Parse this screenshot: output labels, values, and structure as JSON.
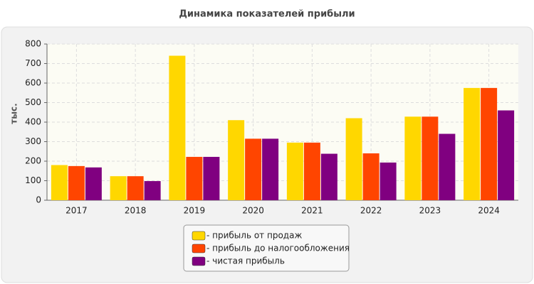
{
  "chart_data": {
    "type": "bar",
    "title": "Динамика показателей прибыли",
    "y_label": "тыс.",
    "categories": [
      "2017",
      "2018",
      "2019",
      "2020",
      "2021",
      "2022",
      "2023",
      "2024"
    ],
    "series": [
      {
        "name": "- прибыль от продаж",
        "color": "#ffd700",
        "values": [
          180,
          123,
          740,
          410,
          295,
          420,
          428,
          575
        ]
      },
      {
        "name": "- прибыль до налогообложения",
        "color": "#ff4500",
        "values": [
          175,
          123,
          222,
          315,
          295,
          240,
          428,
          575
        ]
      },
      {
        "name": "- чистая прибыль",
        "color": "#800080",
        "values": [
          168,
          98,
          222,
          315,
          238,
          193,
          340,
          460
        ]
      }
    ],
    "ylim": [
      0,
      800
    ],
    "yticks": [
      0,
      100,
      200,
      300,
      400,
      500,
      600,
      700,
      800
    ],
    "grid": true,
    "legend": "bottom"
  }
}
